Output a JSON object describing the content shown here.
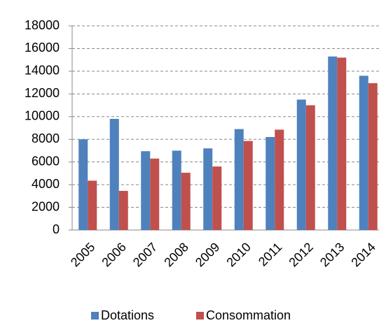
{
  "chart_data": {
    "type": "bar",
    "categories": [
      "2005",
      "2006",
      "2007",
      "2008",
      "2009",
      "2010",
      "2011",
      "2012",
      "2013",
      "2014"
    ],
    "series": [
      {
        "name": "Dotations",
        "color": "#4f81bd",
        "values": [
          8000,
          9800,
          6950,
          7000,
          7200,
          8900,
          8200,
          11500,
          15300,
          13600
        ]
      },
      {
        "name": "Consommation",
        "color": "#c0504d",
        "values": [
          4350,
          3450,
          6300,
          5050,
          5600,
          7850,
          8850,
          11000,
          15200,
          12950
        ]
      }
    ],
    "ylim": [
      0,
      18000
    ],
    "yticks": [
      0,
      2000,
      4000,
      6000,
      8000,
      10000,
      12000,
      14000,
      16000,
      18000
    ],
    "grid": true,
    "legend": "bottom"
  }
}
